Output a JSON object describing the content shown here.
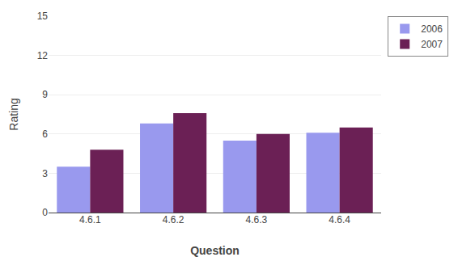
{
  "chart_data": {
    "type": "bar",
    "xlabel": "Question",
    "ylabel": "Rating",
    "categories": [
      "4.6.1",
      "4.6.2",
      "4.6.3",
      "4.6.4"
    ],
    "series": [
      {
        "name": "2006",
        "color": "#9999ee",
        "values": [
          3.5,
          6.8,
          5.5,
          6.1
        ]
      },
      {
        "name": "2007",
        "color": "#6b2055",
        "values": [
          4.8,
          7.6,
          6.0,
          6.5
        ]
      }
    ],
    "ylim": [
      0,
      15
    ],
    "yticks": [
      0,
      3,
      6,
      9,
      12,
      15
    ],
    "grid": true,
    "legend": "right"
  }
}
